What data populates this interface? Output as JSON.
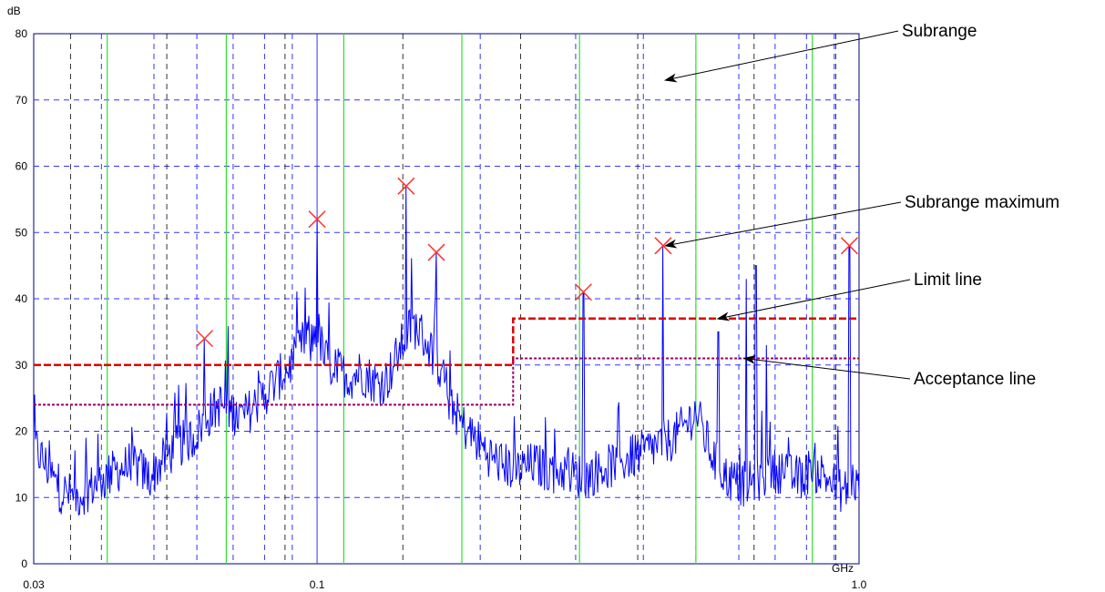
{
  "chart_data": {
    "type": "line",
    "xscale": "log",
    "xlim": [
      0.03,
      1.0
    ],
    "ylim": [
      0,
      80
    ],
    "xunit": "GHz",
    "yunit": "dB",
    "xticks": [
      {
        "value": 0.03,
        "label": "0.03"
      },
      {
        "value": 0.1,
        "label": "0.1"
      },
      {
        "value": 1.0,
        "label": "1.0"
      }
    ],
    "yticks": [
      0,
      10,
      20,
      30,
      40,
      50,
      60,
      70,
      80
    ],
    "grid": true,
    "colors": {
      "spectrum": "#0000ff",
      "limit_line": "#dd0000",
      "acceptance_line": "#990066",
      "marker": "#ff3333",
      "subrange_boundary": "#33dd33",
      "grid": "#3333ff",
      "subrange_grid": "#000000"
    },
    "series": [
      {
        "role": "spectrum",
        "x": [
          0.03,
          0.0315,
          0.0335,
          0.036,
          0.039,
          0.0425,
          0.046,
          0.049,
          0.0525,
          0.056,
          0.059,
          0.0625,
          0.066,
          0.0695,
          0.073,
          0.077,
          0.081,
          0.085,
          0.0895,
          0.0925,
          0.095,
          0.0975,
          0.1,
          0.103,
          0.106,
          0.11,
          0.115,
          0.12,
          0.125,
          0.13,
          0.135,
          0.14,
          0.145,
          0.15,
          0.155,
          0.16,
          0.165,
          0.17,
          0.175,
          0.18,
          0.185,
          0.19,
          0.2,
          0.21,
          0.22,
          0.235,
          0.25,
          0.27,
          0.29,
          0.31,
          0.33,
          0.355,
          0.38,
          0.405,
          0.43,
          0.455,
          0.48,
          0.5,
          0.52,
          0.545,
          0.57,
          0.6,
          0.63,
          0.66,
          0.69,
          0.72,
          0.75,
          0.78,
          0.81,
          0.84,
          0.87,
          0.9,
          0.93,
          0.95,
          0.97,
          0.985,
          1.0
        ],
        "y": [
          17,
          14,
          10,
          9,
          11,
          13,
          14,
          12,
          15,
          17,
          18,
          21,
          23,
          22,
          21,
          23,
          25,
          27,
          29,
          31,
          33,
          32,
          35,
          30,
          29,
          28,
          27,
          28,
          27,
          26,
          27,
          30,
          33,
          35,
          34,
          32,
          30,
          28,
          24,
          22,
          20,
          19,
          17,
          15,
          14,
          13,
          14,
          13,
          13,
          12,
          13,
          14,
          15,
          16,
          17,
          18,
          20,
          22,
          18,
          14,
          12,
          11,
          11,
          12,
          13,
          13,
          12,
          12,
          13,
          13,
          12,
          11,
          10,
          10,
          12,
          11,
          10
        ]
      },
      {
        "role": "limit",
        "x": [
          0.03,
          0.23,
          0.23,
          1.0
        ],
        "y": [
          30,
          30,
          37,
          37
        ]
      },
      {
        "role": "acceptance",
        "x": [
          0.03,
          0.23,
          0.23,
          1.0
        ],
        "y": [
          24,
          24,
          31,
          31
        ]
      }
    ],
    "peaks": [
      {
        "x": 0.0555,
        "y": 27
      },
      {
        "x": 0.062,
        "y": 34
      },
      {
        "x": 0.1,
        "y": 52
      },
      {
        "x": 0.146,
        "y": 57
      },
      {
        "x": 0.166,
        "y": 47
      },
      {
        "x": 0.31,
        "y": 41
      },
      {
        "x": 0.435,
        "y": 48
      },
      {
        "x": 0.55,
        "y": 35
      },
      {
        "x": 0.62,
        "y": 43
      },
      {
        "x": 0.645,
        "y": 45
      },
      {
        "x": 0.675,
        "y": 33
      },
      {
        "x": 0.96,
        "y": 48
      }
    ],
    "subrange_maxima": [
      {
        "x": 0.062,
        "y": 34
      },
      {
        "x": 0.1,
        "y": 52
      },
      {
        "x": 0.146,
        "y": 57
      },
      {
        "x": 0.166,
        "y": 47
      },
      {
        "x": 0.31,
        "y": 41
      },
      {
        "x": 0.435,
        "y": 48
      },
      {
        "x": 0.96,
        "y": 48
      }
    ],
    "subrange_boundaries": [
      0.041,
      0.068,
      0.112,
      0.185,
      0.305,
      0.5,
      0.82
    ],
    "annotations": [
      {
        "text": "Subrange",
        "target": [
          0.44,
          73
        ]
      },
      {
        "text": "Subrange maximum",
        "target": [
          0.44,
          48
        ]
      },
      {
        "text": "Limit line",
        "target": [
          0.55,
          37
        ]
      },
      {
        "text": "Acceptance line",
        "target": [
          0.615,
          31
        ]
      }
    ]
  }
}
